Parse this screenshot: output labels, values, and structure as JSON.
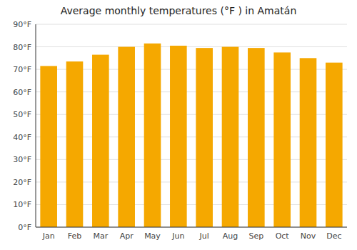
{
  "chart_data": {
    "type": "bar",
    "title": "Average monthly temperatures (°F ) in Amatán",
    "categories": [
      "Jan",
      "Feb",
      "Mar",
      "Apr",
      "May",
      "Jun",
      "Jul",
      "Aug",
      "Sep",
      "Oct",
      "Nov",
      "Dec"
    ],
    "values": [
      71.5,
      73.5,
      76.5,
      80.0,
      81.5,
      80.5,
      79.5,
      80.0,
      79.5,
      77.5,
      75.0,
      73.0
    ],
    "color": "#F5A800",
    "ylim": [
      0,
      90
    ],
    "yticks": [
      {
        "value": 0,
        "label": "0°F"
      },
      {
        "value": 10,
        "label": "10°F"
      },
      {
        "value": 20,
        "label": "20°F"
      },
      {
        "value": 30,
        "label": "30°F"
      },
      {
        "value": 40,
        "label": "40°F"
      },
      {
        "value": 50,
        "label": "50°F"
      },
      {
        "value": 60,
        "label": "60°F"
      },
      {
        "value": 70,
        "label": "70°F"
      },
      {
        "value": 80,
        "label": "80°F"
      },
      {
        "value": 90,
        "label": "90°F"
      }
    ],
    "grid": true
  }
}
